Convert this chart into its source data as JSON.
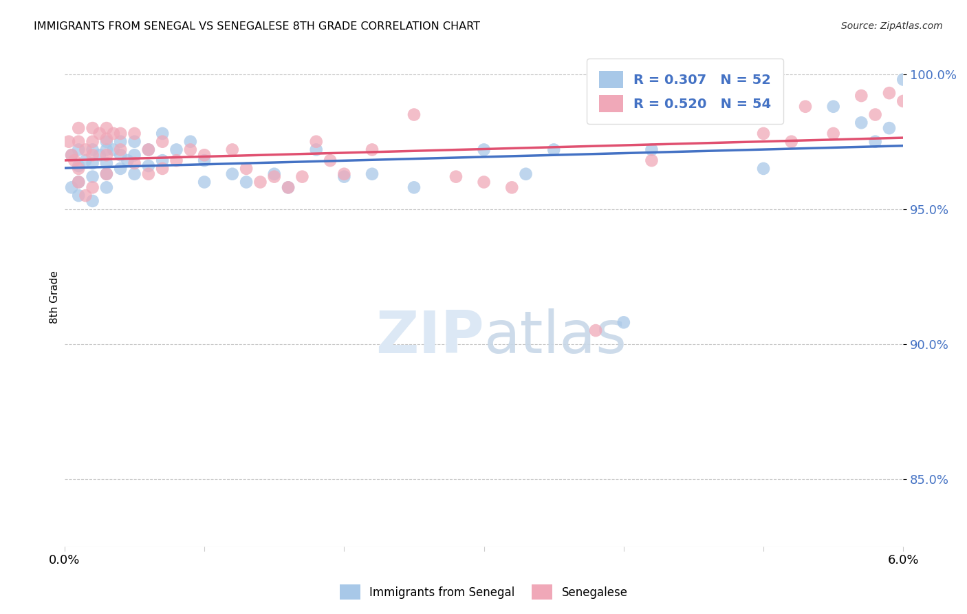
{
  "title": "IMMIGRANTS FROM SENEGAL VS SENEGALESE 8TH GRADE CORRELATION CHART",
  "source": "Source: ZipAtlas.com",
  "ylabel": "8th Grade",
  "ytick_labels": [
    "100.0%",
    "95.0%",
    "90.0%",
    "85.0%"
  ],
  "ytick_values": [
    1.0,
    0.95,
    0.9,
    0.85
  ],
  "xlim": [
    0.0,
    0.06
  ],
  "ylim": [
    0.825,
    1.01
  ],
  "color_blue": "#A8C8E8",
  "color_pink": "#F0A8B8",
  "line_blue": "#4472C4",
  "line_pink": "#E05070",
  "watermark_color": "#DCE8F5",
  "blue_x": [
    0.0005,
    0.001,
    0.001,
    0.001,
    0.0015,
    0.002,
    0.002,
    0.002,
    0.0025,
    0.003,
    0.003,
    0.003,
    0.003,
    0.003,
    0.0035,
    0.004,
    0.004,
    0.004,
    0.0045,
    0.005,
    0.005,
    0.005,
    0.006,
    0.006,
    0.007,
    0.007,
    0.008,
    0.009,
    0.01,
    0.01,
    0.012,
    0.013,
    0.015,
    0.016,
    0.018,
    0.02,
    0.022,
    0.025,
    0.03,
    0.033,
    0.035,
    0.04,
    0.042,
    0.05,
    0.055,
    0.057,
    0.058,
    0.059,
    0.06,
    0.0005,
    0.001,
    0.002
  ],
  "blue_y": [
    0.97,
    0.972,
    0.966,
    0.96,
    0.968,
    0.972,
    0.967,
    0.962,
    0.97,
    0.975,
    0.972,
    0.967,
    0.963,
    0.958,
    0.972,
    0.975,
    0.97,
    0.965,
    0.968,
    0.975,
    0.97,
    0.963,
    0.972,
    0.966,
    0.978,
    0.968,
    0.972,
    0.975,
    0.968,
    0.96,
    0.963,
    0.96,
    0.963,
    0.958,
    0.972,
    0.962,
    0.963,
    0.958,
    0.972,
    0.963,
    0.972,
    0.908,
    0.972,
    0.965,
    0.988,
    0.982,
    0.975,
    0.98,
    0.998,
    0.958,
    0.955,
    0.953
  ],
  "pink_x": [
    0.0003,
    0.0005,
    0.001,
    0.001,
    0.001,
    0.0015,
    0.002,
    0.002,
    0.002,
    0.0025,
    0.003,
    0.003,
    0.003,
    0.003,
    0.0035,
    0.004,
    0.004,
    0.005,
    0.005,
    0.006,
    0.006,
    0.007,
    0.007,
    0.008,
    0.009,
    0.01,
    0.012,
    0.013,
    0.014,
    0.015,
    0.016,
    0.017,
    0.018,
    0.019,
    0.02,
    0.022,
    0.025,
    0.028,
    0.03,
    0.032,
    0.038,
    0.042,
    0.05,
    0.052,
    0.053,
    0.055,
    0.057,
    0.058,
    0.059,
    0.06,
    0.0007,
    0.001,
    0.0015,
    0.002
  ],
  "pink_y": [
    0.975,
    0.97,
    0.98,
    0.975,
    0.965,
    0.972,
    0.98,
    0.975,
    0.97,
    0.978,
    0.98,
    0.976,
    0.97,
    0.963,
    0.978,
    0.978,
    0.972,
    0.978,
    0.967,
    0.972,
    0.963,
    0.975,
    0.965,
    0.968,
    0.972,
    0.97,
    0.972,
    0.965,
    0.96,
    0.962,
    0.958,
    0.962,
    0.975,
    0.968,
    0.963,
    0.972,
    0.985,
    0.962,
    0.96,
    0.958,
    0.905,
    0.968,
    0.978,
    0.975,
    0.988,
    0.978,
    0.992,
    0.985,
    0.993,
    0.99,
    0.968,
    0.96,
    0.955,
    0.958
  ]
}
